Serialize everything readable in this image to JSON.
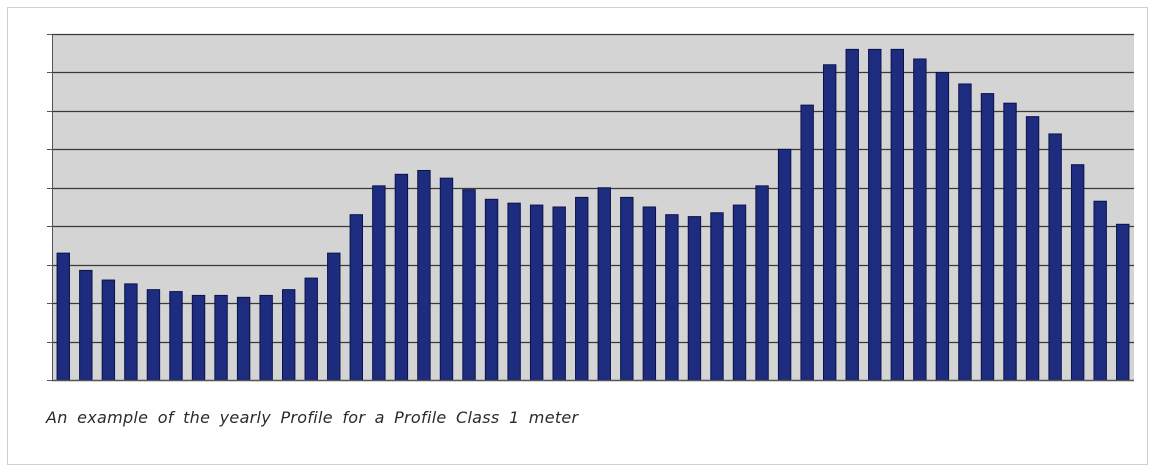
{
  "caption": "An example of the yearly Profile for a Profile Class 1 meter",
  "colors": {
    "plot_background": "#d4d4d4",
    "bar_fill": "#1e2c80",
    "bar_edge": "#0a124a",
    "gridline": "#3a3a3a",
    "axis": "#555555"
  },
  "chart_data": {
    "type": "bar",
    "title": "",
    "xlabel": "",
    "ylabel": "",
    "ylim": [
      0,
      9
    ],
    "grid": true,
    "legend": "none",
    "tick_labels_shown": false,
    "values": [
      3.3,
      2.85,
      2.6,
      2.5,
      2.35,
      2.3,
      2.2,
      2.2,
      2.15,
      2.2,
      2.35,
      2.65,
      3.3,
      4.3,
      5.05,
      5.35,
      5.45,
      5.25,
      4.95,
      4.7,
      4.6,
      4.55,
      4.5,
      4.75,
      5.0,
      4.75,
      4.5,
      4.3,
      4.25,
      4.35,
      4.55,
      5.05,
      6.0,
      7.15,
      8.2,
      8.6,
      8.6,
      8.6,
      8.35,
      8.0,
      7.7,
      7.45,
      7.2,
      6.85,
      6.4,
      5.6,
      4.65,
      4.05
    ]
  }
}
